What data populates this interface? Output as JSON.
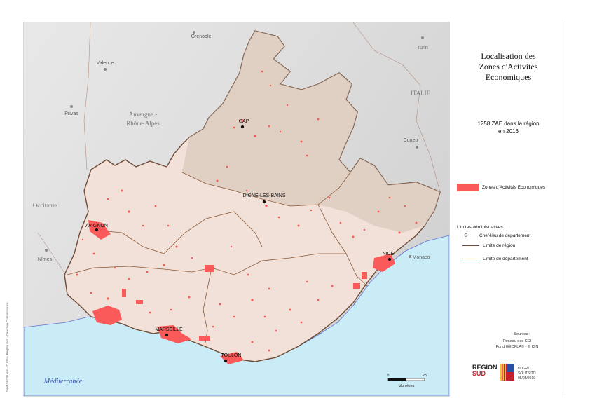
{
  "title": "Localisation des\nZones d'Activités\nEconomiques",
  "stat_text": "1258 ZAE dans la région\nen 2016",
  "legend": {
    "zae_label": "Zones d'Activités Economiques",
    "zae_color": "#fb5a5a",
    "admin_title": "Limites administratives :",
    "prefecture_label": "Chef-lieu de département",
    "region_label": "Limite de région",
    "department_label": "Limite de département"
  },
  "sources": {
    "label": "Sources :",
    "text": "Réseau des CCI\nFond GEOFLA® - © IGN"
  },
  "logo": {
    "line1": "REGION",
    "line2": "SUD",
    "note": "DDGPD\nSOUTSITO\n05/05/2019"
  },
  "map": {
    "sea_label": "Méditerranée",
    "region_labels": [
      "Auvergne -",
      "Rhône-Alpes",
      "Occitanie",
      "ITALIE"
    ],
    "places": [
      "Grenoble",
      "Valence",
      "Privas",
      "Turin",
      "Cuneo",
      "Nîmes",
      "Monaco"
    ],
    "prefectures": [
      "GAP",
      "DIGNE-LES-BAINS",
      "AVIGNON",
      "NICE",
      "MARSEILLE",
      "TOULON"
    ],
    "scale": {
      "min": "0",
      "max": "25",
      "unit": "kilomètres"
    },
    "side_credit": "Fond GEOFLA® - © IGN - Région Sud - Direction Connaissance"
  }
}
